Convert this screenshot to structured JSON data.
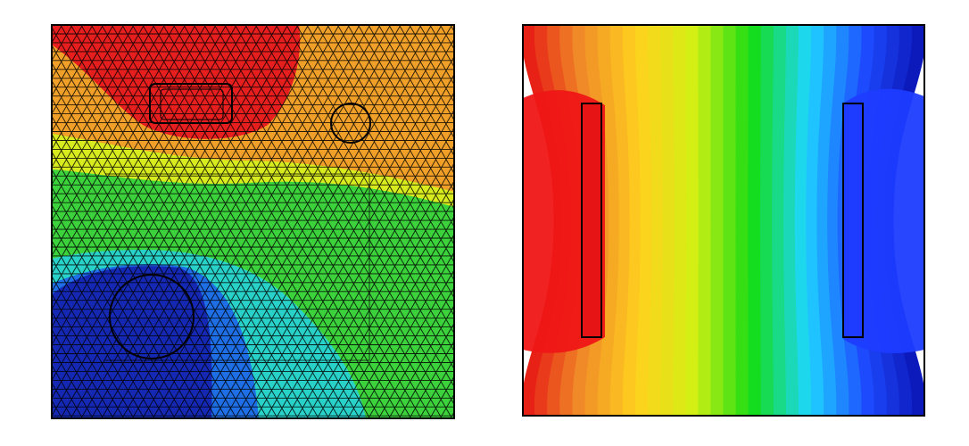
{
  "figure": {
    "description_free": true,
    "colormap": [
      "#0a14b4",
      "#1e4bff",
      "#1ed7ff",
      "#14dc14",
      "#d2f014",
      "#ffd21e",
      "#f08c28",
      "#e61414"
    ]
  },
  "left_panel": {
    "kind": "triangular-mesh-potential",
    "outline_color": "#000000",
    "mesh_line_color": "#000000",
    "inclusions": [
      "rounded-rectangle",
      "small-circle",
      "large-circle",
      "inner-square-path"
    ]
  },
  "right_panel": {
    "kind": "contour-field-between-electrodes",
    "band_count": 32,
    "electrodes": [
      "left-electrode",
      "right-electrode"
    ],
    "left_electrode_color": "#e61414",
    "right_electrode_color": "#1e3cff"
  }
}
